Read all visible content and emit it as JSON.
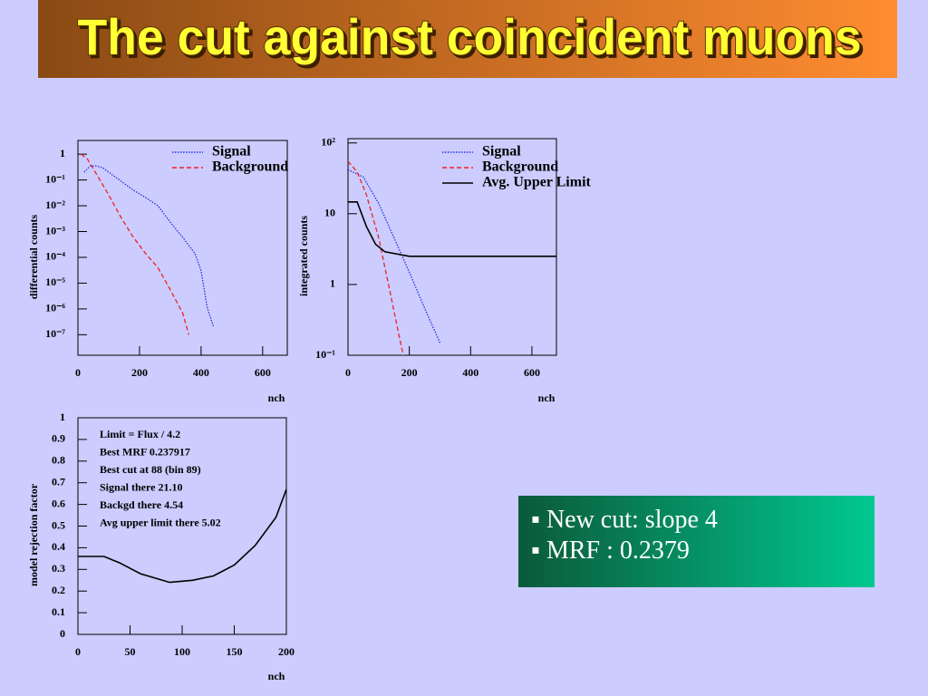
{
  "slide": {
    "title": "The cut against coincident muons",
    "bullets": [
      "New cut: slope 4",
      "MRF : 0.2379"
    ]
  },
  "chart_data": [
    {
      "type": "line",
      "ylabel": "differential counts",
      "xlabel": "nch",
      "log_y": true,
      "xlim": [
        0,
        680
      ],
      "ylim": [
        1.6e-08,
        3.4
      ],
      "xticks": [
        0,
        200,
        400,
        600
      ],
      "yticks": [
        1,
        {
          "value": 0.1,
          "label": "10⁻¹"
        },
        {
          "value": 0.01,
          "label": "10⁻²"
        },
        {
          "value": 0.001,
          "label": "10⁻³"
        },
        {
          "value": 0.0001,
          "label": "10⁻⁴"
        },
        {
          "value": 1e-05,
          "label": "10⁻⁵"
        },
        {
          "value": 1e-06,
          "label": "10⁻⁶"
        },
        {
          "value": 1e-07,
          "label": "10⁻⁷"
        }
      ],
      "series": [
        {
          "name": "Signal",
          "color": "#2233dd",
          "style": "dotted",
          "x": [
            20,
            40,
            60,
            80,
            100,
            140,
            180,
            220,
            260,
            300,
            340,
            380,
            400,
            420,
            440
          ],
          "values": [
            0.2,
            0.35,
            0.35,
            0.3,
            0.2,
            0.09,
            0.04,
            0.021,
            0.01,
            0.0023,
            0.0006,
            0.00014,
            3e-05,
            1.1e-06,
            2.1e-07
          ]
        },
        {
          "name": "Background",
          "color": "#ee2222",
          "style": "dashed",
          "x": [
            10,
            30,
            60,
            100,
            140,
            180,
            220,
            260,
            300,
            340,
            360
          ],
          "values": [
            1.0,
            0.67,
            0.17,
            0.026,
            0.0035,
            0.0006,
            0.00014,
            4e-05,
            5.5e-06,
            7e-07,
            1e-07
          ]
        }
      ]
    },
    {
      "type": "line",
      "ylabel": "integrated counts",
      "xlabel": "nch",
      "log_y": true,
      "xlim": [
        0,
        680
      ],
      "ylim": [
        0.1,
        115
      ],
      "xticks": [
        0,
        200,
        400,
        600
      ],
      "yticks": [
        {
          "value": 100,
          "label": "10²"
        },
        10,
        1,
        {
          "value": 0.1,
          "label": "10⁻¹"
        }
      ],
      "series": [
        {
          "name": "Signal",
          "color": "#2233dd",
          "style": "dotted",
          "x": [
            0,
            50,
            100,
            150,
            200,
            250,
            300
          ],
          "values": [
            42,
            33,
            14,
            4.6,
            1.5,
            0.46,
            0.15
          ]
        },
        {
          "name": "Background",
          "color": "#ee2222",
          "style": "dashed",
          "x": [
            0,
            30,
            60,
            100,
            130,
            160,
            180
          ],
          "values": [
            55,
            39,
            18.6,
            4.6,
            1.1,
            0.26,
            0.1
          ]
        },
        {
          "name": "Avg. Upper Limit",
          "color": "#000000",
          "style": "solid",
          "x": [
            0,
            30,
            60,
            90,
            120,
            200,
            680
          ],
          "values": [
            14.7,
            14.7,
            6.6,
            3.7,
            2.9,
            2.5,
            2.5
          ]
        }
      ]
    },
    {
      "type": "line",
      "ylabel": "model rejection factor",
      "xlabel": "nch",
      "log_y": false,
      "xlim": [
        0,
        200
      ],
      "ylim": [
        0,
        1
      ],
      "xticks": [
        0,
        50,
        100,
        150,
        200
      ],
      "yticks": [
        0,
        0.1,
        0.2,
        0.3,
        0.4,
        0.5,
        0.6,
        0.7,
        0.8,
        0.9,
        1
      ],
      "annotations": [
        "Limit = Flux / 4.2",
        "Best MRF 0.237917",
        "Best cut at 88 (bin 89)",
        "Signal there  21.10",
        "Backgd there   4.54",
        "Avg upper limit there   5.02"
      ],
      "series": [
        {
          "color": "#000000",
          "style": "solid",
          "x": [
            0,
            25,
            40,
            60,
            88,
            110,
            130,
            150,
            170,
            190,
            200
          ],
          "values": [
            0.36,
            0.36,
            0.33,
            0.28,
            0.24,
            0.25,
            0.27,
            0.32,
            0.41,
            0.54,
            0.67
          ]
        }
      ]
    }
  ]
}
